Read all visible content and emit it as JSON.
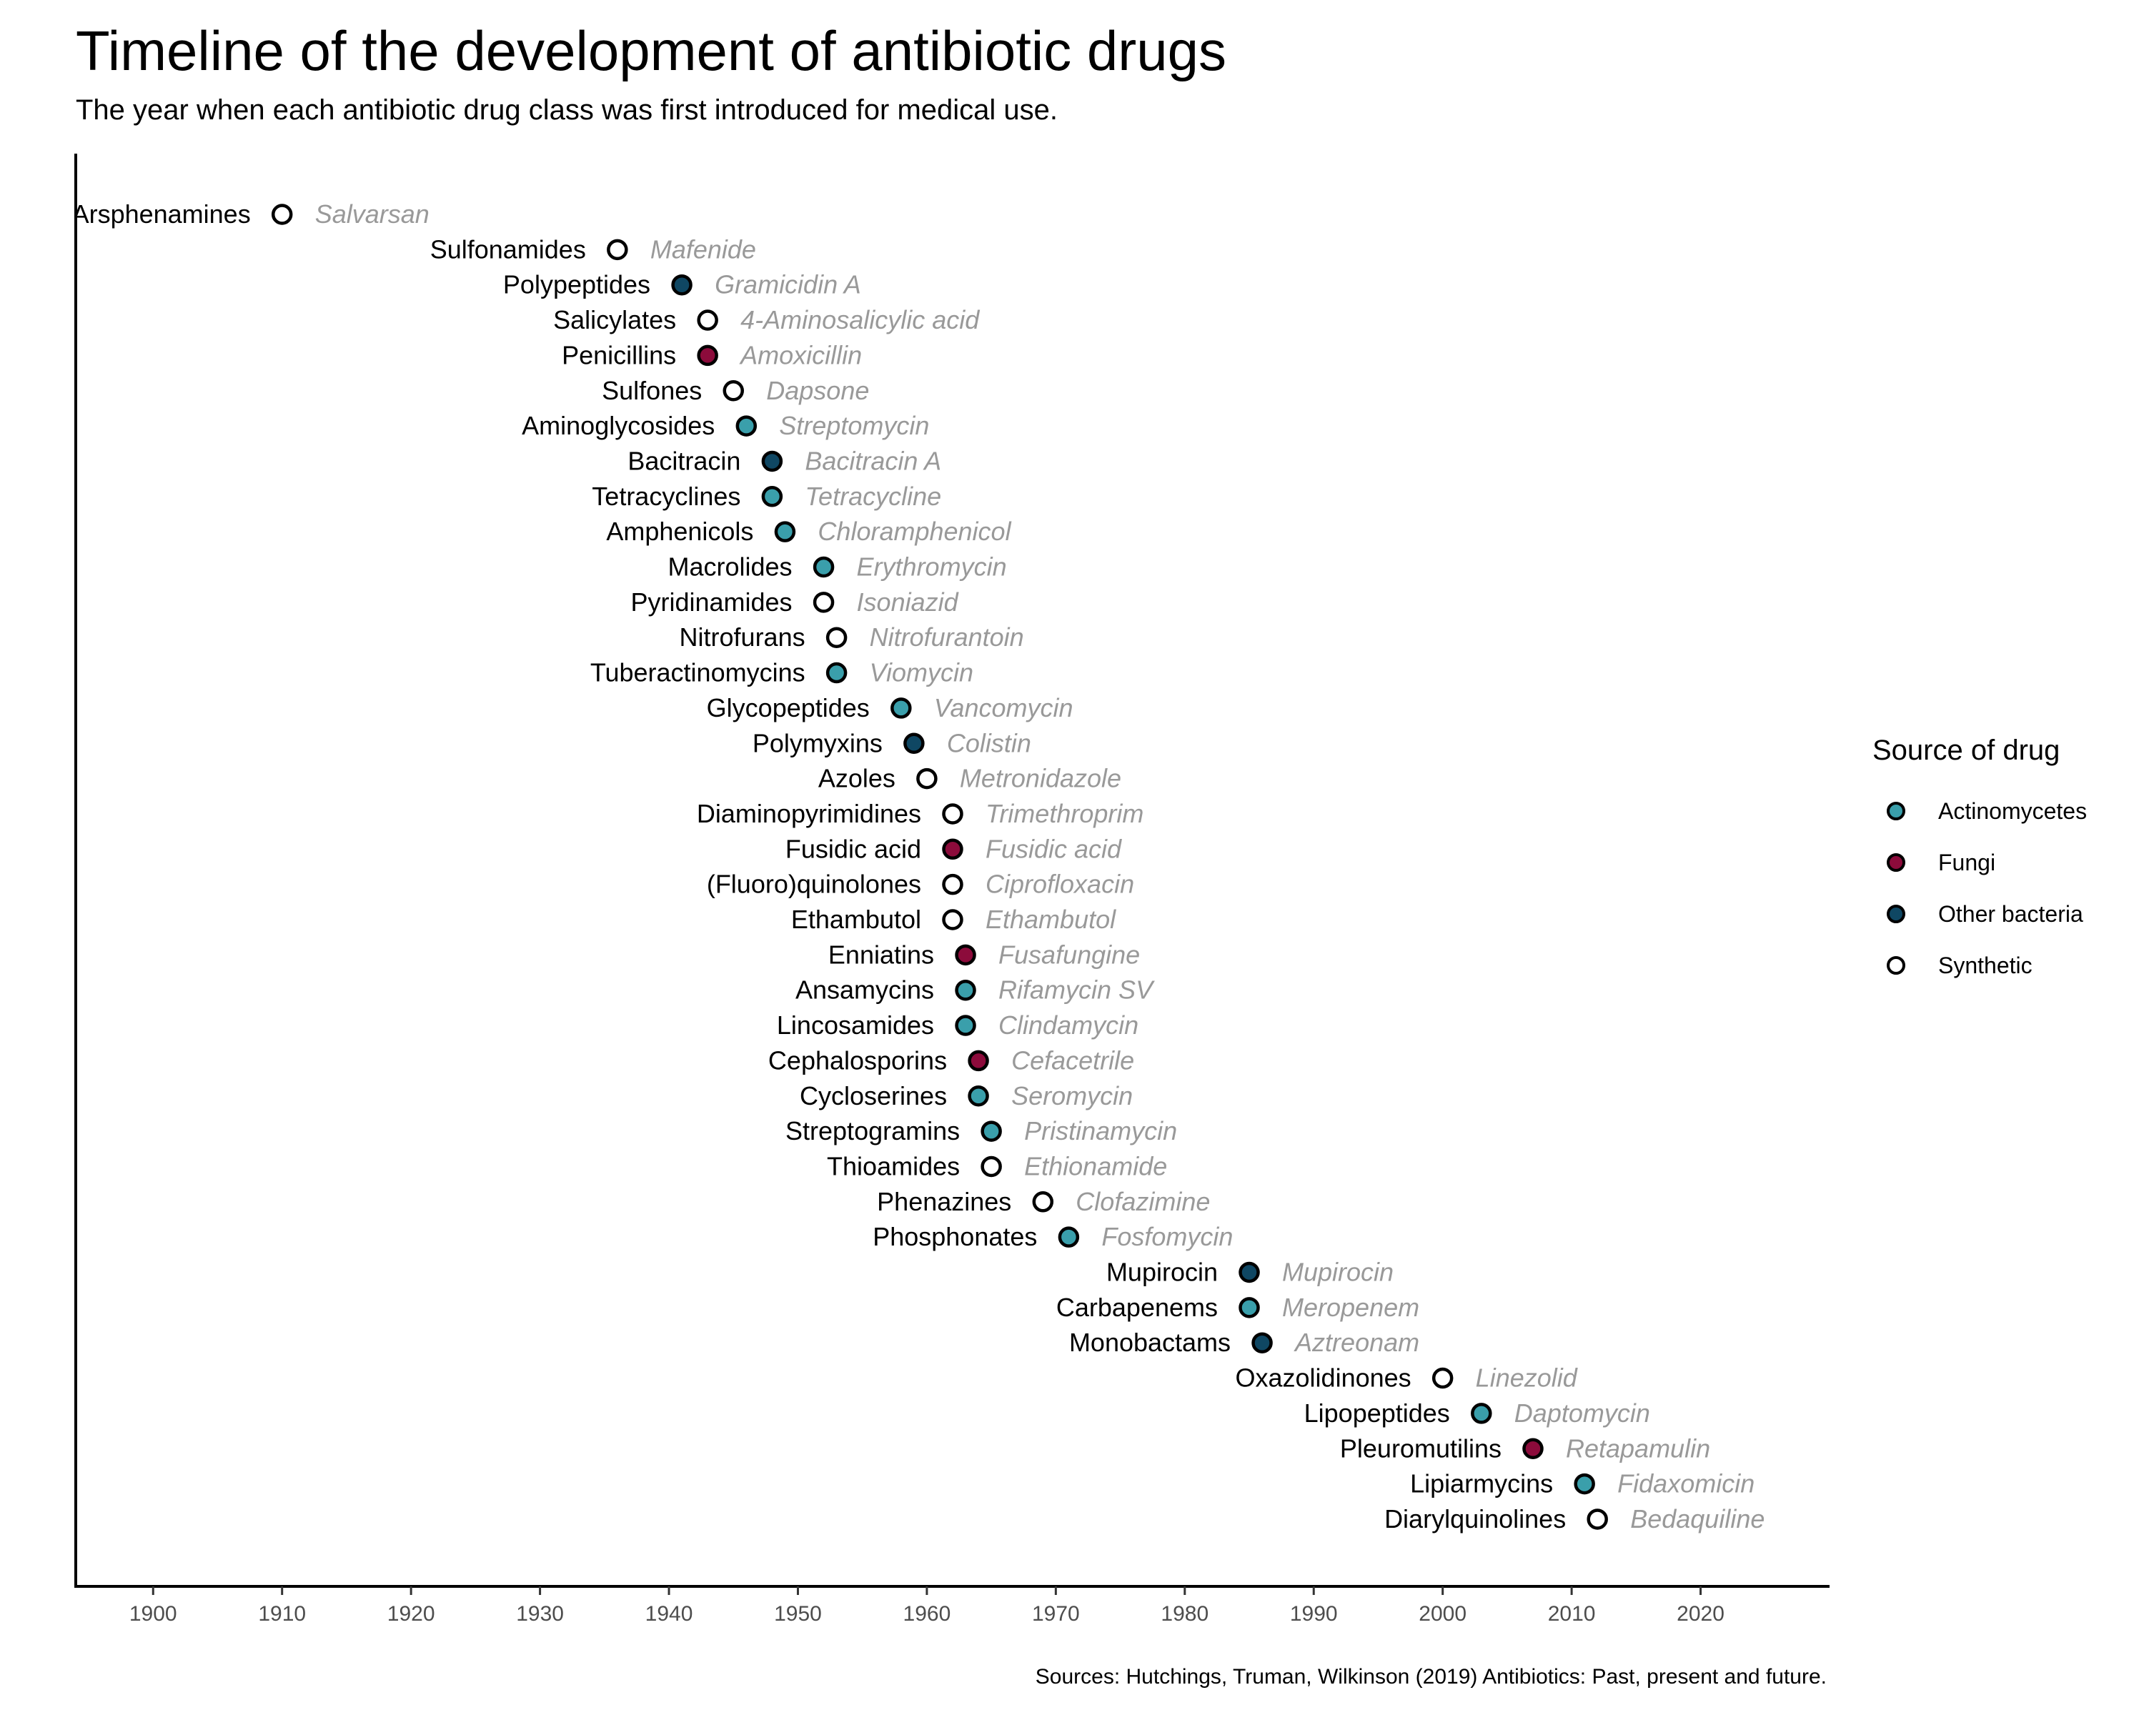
{
  "chart_data": {
    "type": "scatter",
    "title": "Timeline of the development of antibiotic drugs",
    "subtitle": "The year when each antibiotic drug class was first introduced for medical use.",
    "caption": "Sources: Hutchings, Truman, Wilkinson (2019) Antibiotics: Past, present and future.",
    "xlim": [
      1894,
      2030
    ],
    "x_ticks": [
      1900,
      1910,
      1920,
      1930,
      1940,
      1950,
      1960,
      1970,
      1980,
      1990,
      2000,
      2010,
      2020
    ],
    "legend": {
      "title": "Source of drug",
      "position": "right",
      "items": [
        {
          "name": "Actinomycetes",
          "color": "#3a9fab"
        },
        {
          "name": "Fungi",
          "color": "#8c0b3b"
        },
        {
          "name": "Other bacteria",
          "color": "#0f4763"
        },
        {
          "name": "Synthetic",
          "color": "#ffffff"
        }
      ]
    },
    "points": [
      {
        "label": "Arsphenamines",
        "drug": "Salvarsan",
        "year": 1910,
        "source": "Synthetic"
      },
      {
        "label": "Sulfonamides",
        "drug": "Mafenide",
        "year": 1936,
        "source": "Synthetic"
      },
      {
        "label": "Polypeptides",
        "drug": "Gramicidin A",
        "year": 1941,
        "source": "Other bacteria"
      },
      {
        "label": "Salicylates",
        "drug": "4-Aminosalicylic acid",
        "year": 1943,
        "source": "Synthetic"
      },
      {
        "label": "Penicillins",
        "drug": "Amoxicillin",
        "year": 1943,
        "source": "Fungi"
      },
      {
        "label": "Sulfones",
        "drug": "Dapsone",
        "year": 1945,
        "source": "Synthetic"
      },
      {
        "label": "Aminoglycosides",
        "drug": "Streptomycin",
        "year": 1946,
        "source": "Actinomycetes"
      },
      {
        "label": "Bacitracin",
        "drug": "Bacitracin A",
        "year": 1948,
        "source": "Other bacteria"
      },
      {
        "label": "Tetracyclines",
        "drug": "Tetracycline",
        "year": 1948,
        "source": "Actinomycetes"
      },
      {
        "label": "Amphenicols",
        "drug": "Chloramphenicol",
        "year": 1949,
        "source": "Actinomycetes"
      },
      {
        "label": "Macrolides",
        "drug": "Erythromycin",
        "year": 1952,
        "source": "Actinomycetes"
      },
      {
        "label": "Pyridinamides",
        "drug": "Isoniazid",
        "year": 1952,
        "source": "Synthetic"
      },
      {
        "label": "Nitrofurans",
        "drug": "Nitrofurantoin",
        "year": 1953,
        "source": "Synthetic"
      },
      {
        "label": "Tuberactinomycins",
        "drug": "Viomycin",
        "year": 1953,
        "source": "Actinomycetes"
      },
      {
        "label": "Glycopeptides",
        "drug": "Vancomycin",
        "year": 1958,
        "source": "Actinomycetes"
      },
      {
        "label": "Polymyxins",
        "drug": "Colistin",
        "year": 1959,
        "source": "Other bacteria"
      },
      {
        "label": "Azoles",
        "drug": "Metronidazole",
        "year": 1960,
        "source": "Synthetic"
      },
      {
        "label": "Diaminopyrimidines",
        "drug": "Trimethroprim",
        "year": 1962,
        "source": "Synthetic"
      },
      {
        "label": "Fusidic acid",
        "drug": "Fusidic acid",
        "year": 1962,
        "source": "Fungi"
      },
      {
        "label": "(Fluoro)quinolones",
        "drug": "Ciprofloxacin",
        "year": 1962,
        "source": "Synthetic"
      },
      {
        "label": "Ethambutol",
        "drug": "Ethambutol",
        "year": 1962,
        "source": "Synthetic"
      },
      {
        "label": "Enniatins",
        "drug": "Fusafungine",
        "year": 1963,
        "source": "Fungi"
      },
      {
        "label": "Ansamycins",
        "drug": "Rifamycin SV",
        "year": 1963,
        "source": "Actinomycetes"
      },
      {
        "label": "Lincosamides",
        "drug": "Clindamycin",
        "year": 1963,
        "source": "Actinomycetes"
      },
      {
        "label": "Cephalosporins",
        "drug": "Cefacetrile",
        "year": 1964,
        "source": "Fungi"
      },
      {
        "label": "Cycloserines",
        "drug": "Seromycin",
        "year": 1964,
        "source": "Actinomycetes"
      },
      {
        "label": "Streptogramins",
        "drug": "Pristinamycin",
        "year": 1965,
        "source": "Actinomycetes"
      },
      {
        "label": "Thioamides",
        "drug": "Ethionamide",
        "year": 1965,
        "source": "Synthetic"
      },
      {
        "label": "Phenazines",
        "drug": "Clofazimine",
        "year": 1969,
        "source": "Synthetic"
      },
      {
        "label": "Phosphonates",
        "drug": "Fosfomycin",
        "year": 1971,
        "source": "Actinomycetes"
      },
      {
        "label": "Mupirocin",
        "drug": "Mupirocin",
        "year": 1985,
        "source": "Other bacteria"
      },
      {
        "label": "Carbapenems",
        "drug": "Meropenem",
        "year": 1985,
        "source": "Actinomycetes"
      },
      {
        "label": "Monobactams",
        "drug": "Aztreonam",
        "year": 1986,
        "source": "Other bacteria"
      },
      {
        "label": "Oxazolidinones",
        "drug": "Linezolid",
        "year": 2000,
        "source": "Synthetic"
      },
      {
        "label": "Lipopeptides",
        "drug": "Daptomycin",
        "year": 2003,
        "source": "Actinomycetes"
      },
      {
        "label": "Pleuromutilins",
        "drug": "Retapamulin",
        "year": 2007,
        "source": "Fungi"
      },
      {
        "label": "Lipiarmycins",
        "drug": "Fidaxomicin",
        "year": 2011,
        "source": "Actinomycetes"
      },
      {
        "label": "Diarylquinolines",
        "drug": "Bedaquiline",
        "year": 2012,
        "source": "Synthetic"
      }
    ]
  }
}
